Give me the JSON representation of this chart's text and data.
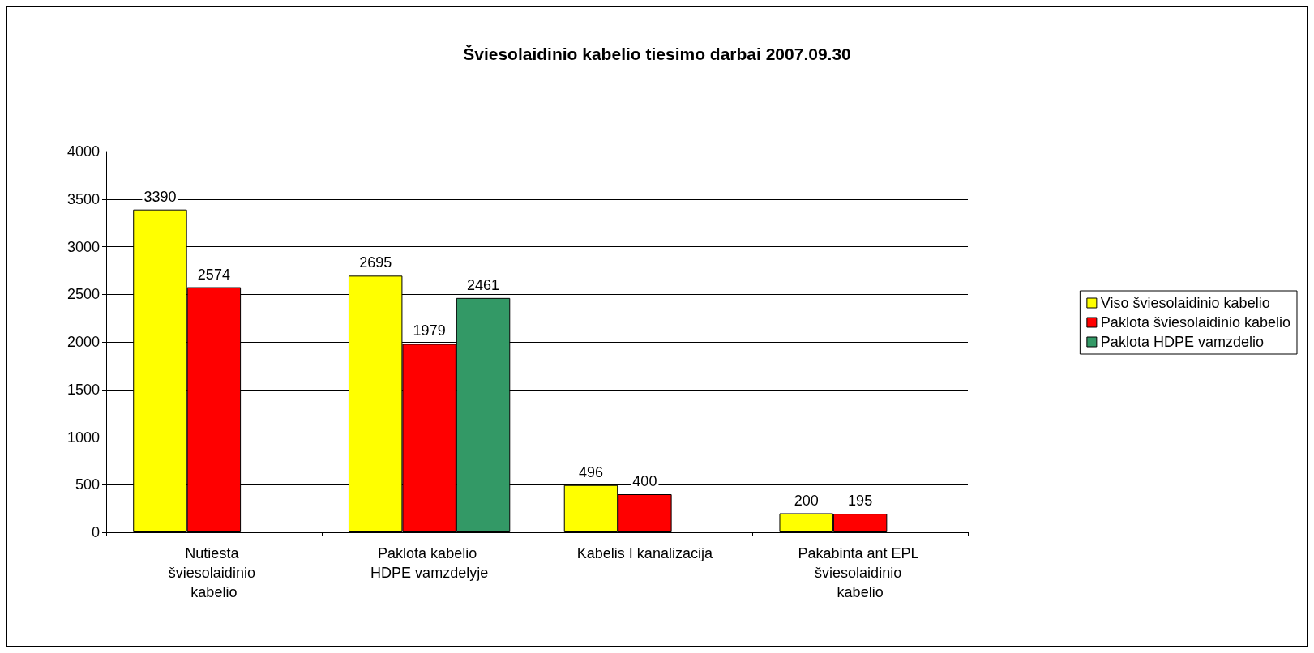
{
  "chart_data": {
    "type": "bar",
    "title": "Šviesolaidinio kabelio tiesimo darbai 2007.09.30",
    "categories": [
      "Nutiesta šviesolaidinio kabelio",
      "Paklota kabelio HDPE vamzdelyje",
      "Kabelis I kanalizacija",
      "Pakabinta ant EPL šviesolaidinio kabelio"
    ],
    "series": [
      {
        "name": "Viso šviesolaidinio kabelio",
        "color": "#ffff00",
        "values": [
          3390,
          2695,
          496,
          200
        ]
      },
      {
        "name": "Paklota šviesolaidinio kabelio",
        "color": "#ff0000",
        "values": [
          2574,
          1979,
          400,
          195
        ]
      },
      {
        "name": "Paklota HDPE vamzdelio",
        "color": "#339966",
        "values": [
          null,
          2461,
          null,
          null
        ]
      }
    ],
    "ylim": [
      0,
      4000
    ],
    "yticks": [
      0,
      500,
      1000,
      1500,
      2000,
      2500,
      3000,
      3500,
      4000
    ],
    "grid": "y",
    "legend": "right",
    "data_labels": true
  }
}
